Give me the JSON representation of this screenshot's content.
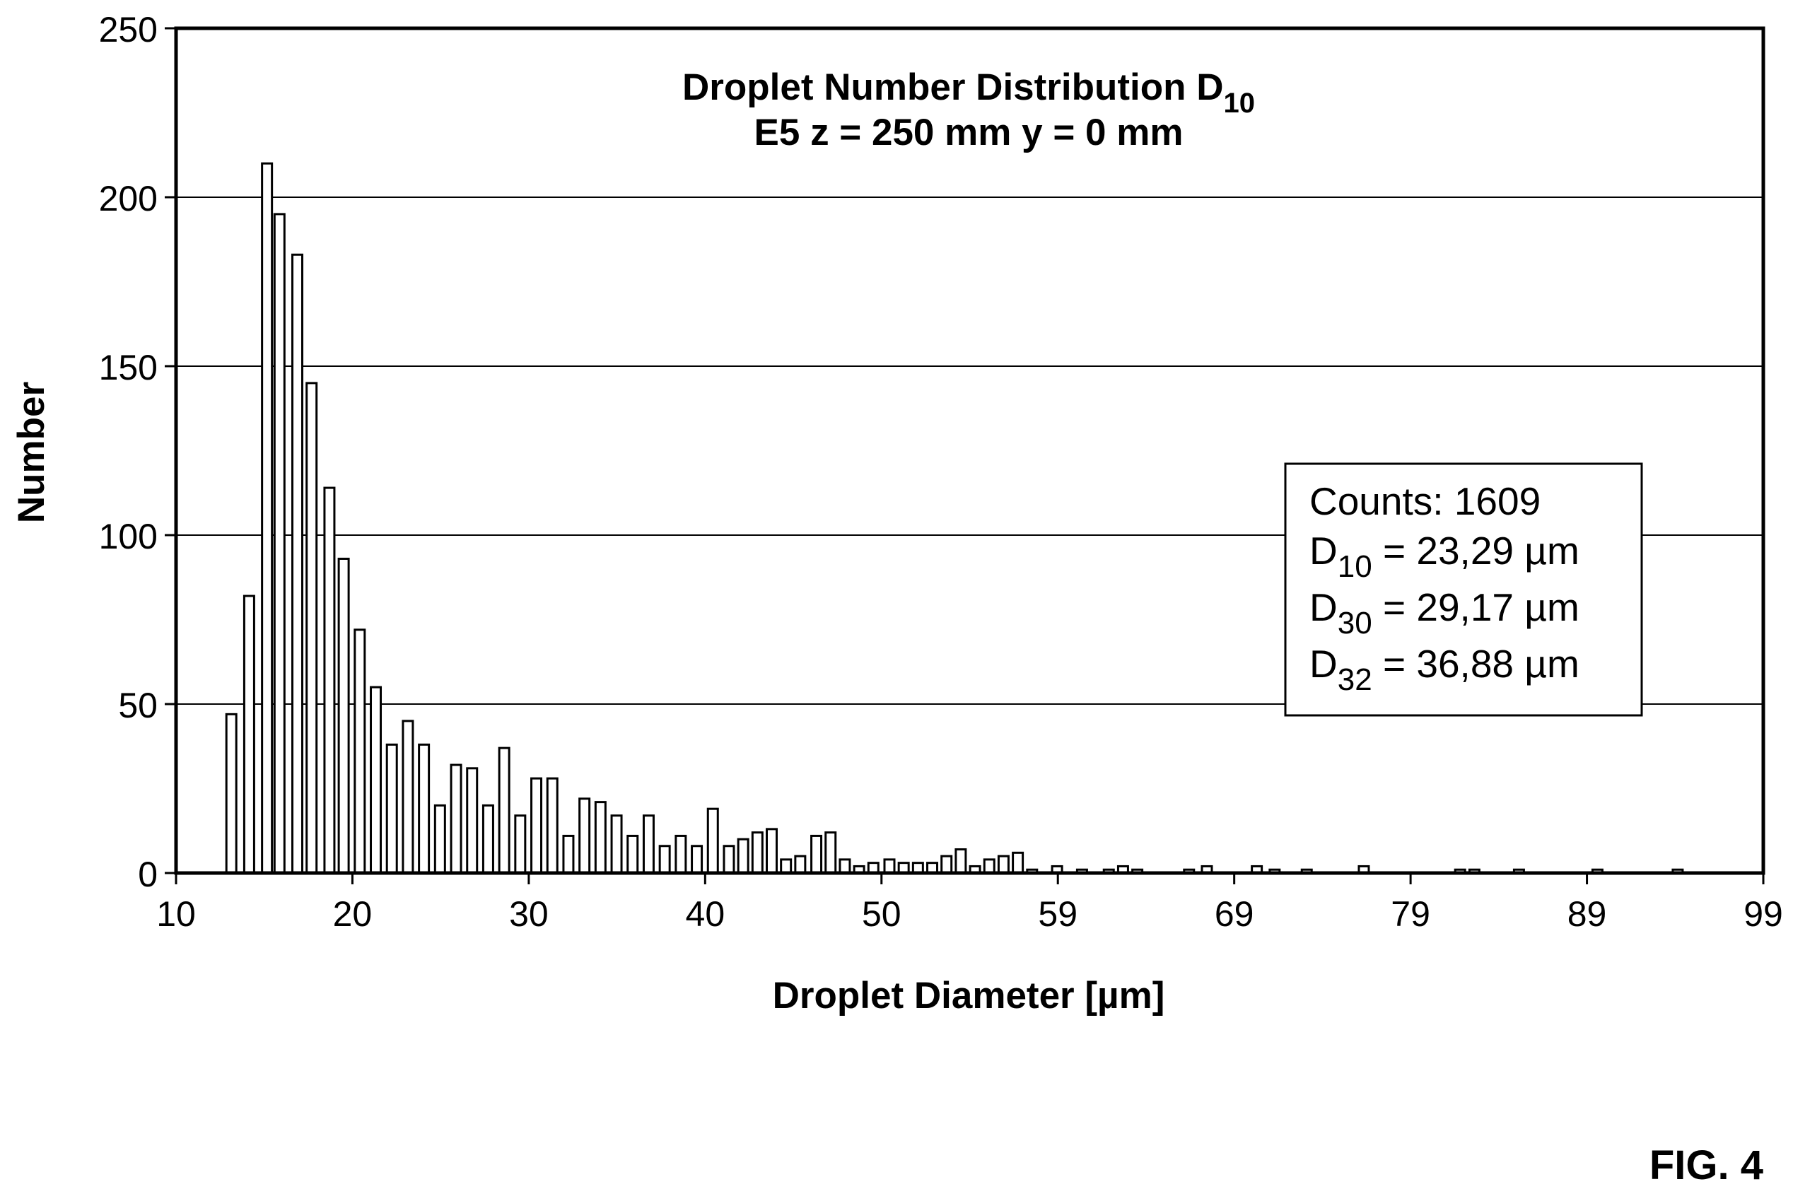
{
  "chart_data": {
    "type": "bar",
    "title_main": "Droplet Number Distribution D",
    "title_main_sub": "10",
    "subtitle": "E5 z = 250 mm y = 0 mm",
    "xlabel": "Droplet Diameter [µm]",
    "ylabel": "Number",
    "xlim": [
      10,
      99
    ],
    "ylim": [
      0,
      250
    ],
    "x_ticks": [
      "10",
      "20",
      "30",
      "40",
      "50",
      "59",
      "69",
      "79",
      "89",
      "99"
    ],
    "y_ticks": [
      0,
      50,
      100,
      150,
      200,
      250
    ],
    "grid": "horizontal",
    "bins": [
      {
        "x": 13.1,
        "y": 47
      },
      {
        "x": 14.1,
        "y": 82
      },
      {
        "x": 15.1,
        "y": 210
      },
      {
        "x": 15.8,
        "y": 195
      },
      {
        "x": 16.8,
        "y": 183
      },
      {
        "x": 17.6,
        "y": 145
      },
      {
        "x": 18.6,
        "y": 114
      },
      {
        "x": 19.4,
        "y": 93
      },
      {
        "x": 20.3,
        "y": 72
      },
      {
        "x": 21.2,
        "y": 55
      },
      {
        "x": 22.1,
        "y": 38
      },
      {
        "x": 23.0,
        "y": 45
      },
      {
        "x": 23.9,
        "y": 38
      },
      {
        "x": 24.8,
        "y": 20
      },
      {
        "x": 25.7,
        "y": 32
      },
      {
        "x": 26.6,
        "y": 31
      },
      {
        "x": 27.5,
        "y": 20
      },
      {
        "x": 28.4,
        "y": 37
      },
      {
        "x": 29.3,
        "y": 17
      },
      {
        "x": 30.2,
        "y": 28
      },
      {
        "x": 31.1,
        "y": 28
      },
      {
        "x": 32.0,
        "y": 11
      },
      {
        "x": 32.9,
        "y": 22
      },
      {
        "x": 33.8,
        "y": 21
      },
      {
        "x": 34.7,
        "y": 17
      },
      {
        "x": 35.6,
        "y": 11
      },
      {
        "x": 36.5,
        "y": 17
      },
      {
        "x": 37.4,
        "y": 8
      },
      {
        "x": 38.3,
        "y": 11
      },
      {
        "x": 39.2,
        "y": 8
      },
      {
        "x": 40.1,
        "y": 19
      },
      {
        "x": 41.0,
        "y": 8
      },
      {
        "x": 41.8,
        "y": 10
      },
      {
        "x": 42.6,
        "y": 12
      },
      {
        "x": 43.4,
        "y": 13
      },
      {
        "x": 44.2,
        "y": 4
      },
      {
        "x": 45.0,
        "y": 5
      },
      {
        "x": 45.9,
        "y": 11
      },
      {
        "x": 46.7,
        "y": 12
      },
      {
        "x": 47.5,
        "y": 4
      },
      {
        "x": 48.3,
        "y": 2
      },
      {
        "x": 49.1,
        "y": 3
      },
      {
        "x": 50.0,
        "y": 4
      },
      {
        "x": 50.8,
        "y": 3
      },
      {
        "x": 51.6,
        "y": 3
      },
      {
        "x": 52.4,
        "y": 3
      },
      {
        "x": 53.2,
        "y": 5
      },
      {
        "x": 54.0,
        "y": 7
      },
      {
        "x": 54.8,
        "y": 2
      },
      {
        "x": 55.6,
        "y": 4
      },
      {
        "x": 56.4,
        "y": 5
      },
      {
        "x": 57.2,
        "y": 6
      },
      {
        "x": 58.0,
        "y": 1
      },
      {
        "x": 59.4,
        "y": 2
      },
      {
        "x": 60.8,
        "y": 1
      },
      {
        "x": 62.3,
        "y": 1
      },
      {
        "x": 63.1,
        "y": 2
      },
      {
        "x": 63.9,
        "y": 1
      },
      {
        "x": 66.8,
        "y": 1
      },
      {
        "x": 67.8,
        "y": 2
      },
      {
        "x": 70.6,
        "y": 2
      },
      {
        "x": 71.6,
        "y": 1
      },
      {
        "x": 73.4,
        "y": 1
      },
      {
        "x": 76.6,
        "y": 2
      },
      {
        "x": 82.0,
        "y": 1
      },
      {
        "x": 82.8,
        "y": 1
      },
      {
        "x": 85.3,
        "y": 1
      },
      {
        "x": 89.7,
        "y": 1
      },
      {
        "x": 94.2,
        "y": 1
      }
    ],
    "stats_box": {
      "counts_line": "Counts: 1609",
      "lines": [
        {
          "main": "D",
          "sub": "10",
          "rest": " = 23,29 µm"
        },
        {
          "main": "D",
          "sub": "30",
          "rest": " = 29,17 µm"
        },
        {
          "main": "D",
          "sub": "32",
          "rest": " = 36,88 µm"
        }
      ]
    }
  },
  "figure_label": "FIG. 4"
}
